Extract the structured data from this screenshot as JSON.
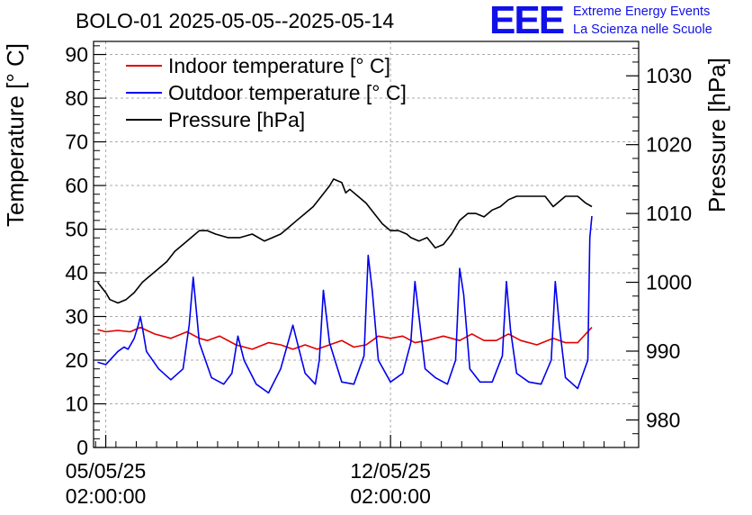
{
  "page_title": "BOLO-01 2025-05-05--2025-05-14",
  "logo": {
    "mark": "EEE",
    "line1": "Extreme Energy Events",
    "line2": "La Scienza nelle Scuole",
    "color": "#1010e8"
  },
  "chart_data": {
    "type": "line",
    "title": "BOLO-01 2025-05-05--2025-05-14",
    "ylabel": "Temperature [° C]",
    "y2label": "Pressure [hPa]",
    "ylim": [
      0,
      93
    ],
    "y2lim": [
      976,
      1035
    ],
    "yticks": [
      0,
      10,
      20,
      30,
      40,
      50,
      60,
      70,
      80,
      90
    ],
    "y2ticks": [
      980,
      990,
      1000,
      1010,
      1020,
      1030
    ],
    "xlim": [
      -0.3,
      13.1
    ],
    "xticks": [
      {
        "value": 0,
        "date": "05/05/25",
        "time": "02:00:00"
      },
      {
        "value": 7,
        "date": "12/05/25",
        "time": "02:00:00"
      }
    ],
    "grid": true,
    "legend_position": "top-left",
    "series": [
      {
        "name": "Indoor temperature [° C]",
        "color": "#e00000",
        "axis": "left",
        "x": [
          -0.2,
          0.0,
          0.3,
          0.6,
          0.85,
          1.2,
          1.6,
          2.0,
          2.3,
          2.5,
          2.8,
          3.2,
          3.6,
          4.0,
          4.3,
          4.6,
          4.9,
          5.2,
          5.5,
          5.8,
          6.1,
          6.4,
          6.7,
          7.0,
          7.3,
          7.6,
          7.9,
          8.3,
          8.7,
          9.0,
          9.3,
          9.6,
          9.9,
          10.2,
          10.6,
          11.0,
          11.3,
          11.6,
          11.95
        ],
        "y": [
          27,
          26.5,
          26.8,
          26.5,
          27.5,
          26,
          25,
          26.5,
          25,
          24.5,
          25.5,
          23.5,
          22.5,
          24,
          23.5,
          22.5,
          23.5,
          22.5,
          23.5,
          24.5,
          23,
          23.5,
          25.5,
          25,
          25.5,
          24,
          24.5,
          25.5,
          24.5,
          26,
          24.5,
          24.5,
          26,
          24.5,
          23.5,
          25,
          24,
          24,
          27.5
        ]
      },
      {
        "name": "Outdoor temperature [° C]",
        "color": "#0000ee",
        "axis": "left",
        "x": [
          -0.2,
          0.0,
          0.15,
          0.3,
          0.45,
          0.55,
          0.7,
          0.8,
          0.85,
          0.9,
          1.0,
          1.3,
          1.6,
          1.9,
          2.05,
          2.15,
          2.3,
          2.6,
          2.9,
          3.1,
          3.25,
          3.4,
          3.7,
          4.0,
          4.3,
          4.6,
          4.9,
          5.15,
          5.25,
          5.35,
          5.5,
          5.8,
          6.1,
          6.35,
          6.45,
          6.55,
          6.7,
          7.0,
          7.3,
          7.5,
          7.6,
          7.7,
          7.85,
          8.1,
          8.4,
          8.6,
          8.7,
          8.8,
          8.95,
          9.2,
          9.5,
          9.75,
          9.85,
          9.95,
          10.1,
          10.4,
          10.7,
          10.95,
          11.05,
          11.15,
          11.3,
          11.6,
          11.85,
          11.9,
          11.95
        ],
        "y": [
          19.5,
          19,
          20.5,
          22,
          23,
          22.5,
          25,
          28,
          30,
          27.5,
          22,
          18,
          15.5,
          18,
          28,
          39,
          24,
          16,
          14.5,
          17,
          25.5,
          20,
          14.5,
          12.5,
          18,
          28,
          17,
          14.5,
          20,
          36,
          24,
          15,
          14.5,
          21,
          44,
          36,
          20,
          15,
          17,
          24,
          38,
          30,
          18,
          16,
          14.5,
          20,
          41,
          35,
          18,
          15,
          15,
          21,
          38,
          27,
          17,
          15,
          14.5,
          20,
          38,
          28,
          16,
          13.5,
          20,
          48,
          53
        ]
      },
      {
        "name": "Pressure [hPa]",
        "color": "#000000",
        "axis": "right",
        "x": [
          -0.2,
          0.0,
          0.1,
          0.3,
          0.5,
          0.7,
          0.9,
          1.1,
          1.3,
          1.5,
          1.7,
          1.9,
          2.1,
          2.3,
          2.5,
          2.7,
          3.0,
          3.3,
          3.6,
          3.9,
          4.1,
          4.3,
          4.5,
          4.7,
          4.9,
          5.1,
          5.3,
          5.5,
          5.6,
          5.8,
          5.9,
          6.0,
          6.2,
          6.4,
          6.6,
          6.8,
          7.0,
          7.2,
          7.4,
          7.5,
          7.7,
          7.9,
          8.1,
          8.3,
          8.5,
          8.7,
          8.9,
          9.1,
          9.3,
          9.5,
          9.7,
          9.9,
          10.1,
          10.3,
          10.6,
          10.8,
          11.0,
          11.3,
          11.6,
          11.8,
          11.95
        ],
        "y": [
          1000,
          998.5,
          997.5,
          997,
          997.5,
          998.5,
          1000,
          1001,
          1002,
          1003,
          1004.5,
          1005.5,
          1006.5,
          1007.5,
          1007.5,
          1007,
          1006.5,
          1006.5,
          1007,
          1006,
          1006.5,
          1007,
          1008,
          1009,
          1010,
          1011,
          1012.5,
          1014,
          1015,
          1014.5,
          1013,
          1013.5,
          1012.5,
          1011.5,
          1010,
          1008.5,
          1007.5,
          1007.5,
          1007,
          1006.5,
          1006,
          1006.5,
          1005,
          1005.5,
          1007,
          1009,
          1010,
          1010,
          1009.5,
          1010.5,
          1011,
          1012,
          1012.5,
          1012.5,
          1012.5,
          1012.5,
          1011,
          1012.5,
          1012.5,
          1011.5,
          1011
        ]
      }
    ]
  }
}
